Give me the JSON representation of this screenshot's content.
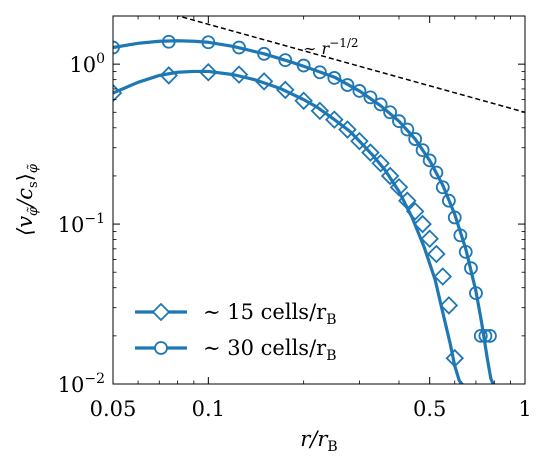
{
  "chart_data": {
    "type": "line",
    "xscale": "log",
    "yscale": "log",
    "xlim": [
      0.05,
      1
    ],
    "ylim": [
      0.01,
      2.0
    ],
    "xlabel": "r/r_B",
    "ylabel": "⟨v_φ̃/c_s⟩_φ̃",
    "x_ticks": [
      {
        "value": 0.05,
        "label": "0.05"
      },
      {
        "value": 0.1,
        "label": "0.1"
      },
      {
        "value": 0.5,
        "label": "0.5"
      },
      {
        "value": 1,
        "label": "1"
      }
    ],
    "y_ticks": [
      {
        "value": 1,
        "label": "10^0",
        "base": "10",
        "exp": "0"
      },
      {
        "value": 0.1,
        "label": "10^-1",
        "base": "10",
        "exp": "−1"
      },
      {
        "value": 0.01,
        "label": "10^-2",
        "base": "10",
        "exp": "−2"
      }
    ],
    "grid": false,
    "legend_position": "lower-left",
    "color": "#1f77b4",
    "series": [
      {
        "name": "~ 15 cells/r_B",
        "legend_text": "∼ 15 cells/r",
        "legend_sub": "B",
        "marker": "diamond",
        "x": [
          0.05,
          0.06,
          0.07,
          0.08,
          0.09,
          0.1,
          0.12,
          0.14,
          0.17,
          0.2,
          0.22,
          0.25,
          0.28,
          0.3,
          0.33,
          0.36,
          0.4,
          0.44,
          0.48,
          0.52,
          0.55,
          0.58,
          0.6,
          0.62,
          0.635
        ],
        "y": [
          0.66,
          0.77,
          0.85,
          0.89,
          0.9,
          0.9,
          0.86,
          0.8,
          0.7,
          0.6,
          0.54,
          0.45,
          0.38,
          0.33,
          0.27,
          0.22,
          0.16,
          0.11,
          0.072,
          0.045,
          0.028,
          0.018,
          0.013,
          0.0105,
          0.0099
        ],
        "marker_x": [
          0.05,
          0.075,
          0.1,
          0.125,
          0.15,
          0.175,
          0.2,
          0.225,
          0.25,
          0.275,
          0.3,
          0.325,
          0.35,
          0.375,
          0.4,
          0.425,
          0.45,
          0.475,
          0.5,
          0.525,
          0.55,
          0.575,
          0.6
        ],
        "marker_y": [
          0.66,
          0.85,
          0.89,
          0.86,
          0.78,
          0.69,
          0.59,
          0.51,
          0.45,
          0.39,
          0.33,
          0.28,
          0.24,
          0.2,
          0.17,
          0.14,
          0.12,
          0.1,
          0.081,
          0.065,
          0.047,
          0.031,
          0.0145
        ]
      },
      {
        "name": "~ 30 cells/r_B",
        "legend_text": "∼ 30 cells/r",
        "legend_sub": "B",
        "marker": "circle",
        "x": [
          0.05,
          0.06,
          0.07,
          0.08,
          0.09,
          0.1,
          0.12,
          0.15,
          0.18,
          0.2,
          0.25,
          0.3,
          0.35,
          0.4,
          0.45,
          0.5,
          0.55,
          0.6,
          0.65,
          0.7,
          0.73,
          0.76,
          0.78,
          0.795
        ],
        "y": [
          1.27,
          1.35,
          1.39,
          1.4,
          1.39,
          1.37,
          1.29,
          1.16,
          1.04,
          0.97,
          0.83,
          0.68,
          0.55,
          0.44,
          0.34,
          0.25,
          0.175,
          0.115,
          0.07,
          0.038,
          0.024,
          0.0145,
          0.0108,
          0.0099
        ],
        "marker_x": [
          0.05,
          0.075,
          0.1,
          0.125,
          0.15,
          0.175,
          0.2,
          0.225,
          0.25,
          0.275,
          0.3,
          0.325,
          0.35,
          0.375,
          0.4,
          0.425,
          0.45,
          0.475,
          0.5,
          0.525,
          0.55,
          0.575,
          0.6,
          0.625,
          0.65,
          0.675,
          0.7,
          0.725,
          0.75,
          0.775
        ],
        "marker_y": [
          1.27,
          1.38,
          1.37,
          1.27,
          1.16,
          1.06,
          0.98,
          0.89,
          0.82,
          0.74,
          0.68,
          0.62,
          0.56,
          0.5,
          0.44,
          0.39,
          0.34,
          0.29,
          0.25,
          0.21,
          0.17,
          0.14,
          0.11,
          0.085,
          0.067,
          0.053,
          0.037,
          0.02,
          0.02,
          0.02
        ]
      }
    ],
    "reference_line": {
      "label": "∼ r^−1/2",
      "label_base": "∼ r",
      "label_exp": "−1/2",
      "style": "dashed",
      "color": "#000000",
      "x": [
        0.05,
        1
      ],
      "y": [
        2.6,
        0.5
      ]
    }
  }
}
